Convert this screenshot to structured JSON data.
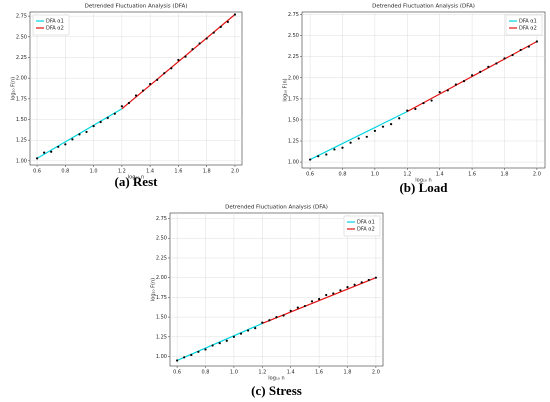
{
  "chart_data": [
    {
      "type": "scatter",
      "title": "Detrended Fluctuation Analysis (DFA)",
      "caption": "(a) Rest",
      "xlabel": "log₁₀ n",
      "ylabel": "log₁₀ F(n)",
      "grid": true,
      "legend": "upper left",
      "xlim": [
        0.55,
        2.05
      ],
      "ylim": [
        0.95,
        2.8
      ],
      "xticks": [
        0.6,
        0.8,
        {
          "value": 1.0,
          "label": "1.0"
        },
        1.2,
        1.4,
        1.6,
        1.8,
        {
          "value": 2.0,
          "label": "2.0"
        }
      ],
      "yticks": [
        {
          "value": 1.0,
          "label": "1.00"
        },
        1.25,
        {
          "value": 1.5,
          "label": "1.50"
        },
        1.75,
        {
          "value": 2.0,
          "label": "2.00"
        },
        2.25,
        {
          "value": 2.5,
          "label": "2.50"
        },
        2.75
      ],
      "points": {
        "color": "#000000",
        "x": [
          0.6,
          0.65,
          0.7,
          0.75,
          0.8,
          0.85,
          0.9,
          0.95,
          1.0,
          1.05,
          1.1,
          1.15,
          1.2,
          1.25,
          1.3,
          1.35,
          1.4,
          1.45,
          1.5,
          1.55,
          1.6,
          1.65,
          1.7,
          1.75,
          1.8,
          1.85,
          1.9,
          1.95,
          2.0
        ],
        "values": [
          1.03,
          1.1,
          1.11,
          1.17,
          1.2,
          1.26,
          1.32,
          1.35,
          1.42,
          1.47,
          1.52,
          1.57,
          1.66,
          1.7,
          1.79,
          1.85,
          1.93,
          1.98,
          2.06,
          2.12,
          2.22,
          2.26,
          2.35,
          2.42,
          2.48,
          2.55,
          2.62,
          2.68,
          2.77
        ]
      },
      "series": [
        {
          "name": "DFA α1",
          "color": "#00d5e0",
          "x": [
            0.6,
            1.2
          ],
          "values": [
            1.03,
            1.63
          ]
        },
        {
          "name": "DFA α2",
          "color": "#e01010",
          "x": [
            1.2,
            2.0
          ],
          "values": [
            1.63,
            2.77
          ]
        }
      ]
    },
    {
      "type": "scatter",
      "title": "Detrended Fluctuation Analysis (DFA)",
      "caption": "(b) Load",
      "xlabel": "log₁₀ n",
      "ylabel": "log₁₀ F(n)",
      "grid": true,
      "legend": "upper right",
      "xlim": [
        0.55,
        2.05
      ],
      "ylim": [
        0.93,
        2.78
      ],
      "xticks": [
        0.6,
        0.8,
        {
          "value": 1.0,
          "label": "1.0"
        },
        1.2,
        1.4,
        1.6,
        1.8,
        {
          "value": 2.0,
          "label": "2.0"
        }
      ],
      "yticks": [
        {
          "value": 1.0,
          "label": "1.00"
        },
        1.25,
        {
          "value": 1.5,
          "label": "1.50"
        },
        1.75,
        {
          "value": 2.0,
          "label": "2.00"
        },
        2.25,
        {
          "value": 2.5,
          "label": "2.50"
        },
        2.75
      ],
      "points": {
        "color": "#000000",
        "x": [
          0.6,
          0.65,
          0.7,
          0.75,
          0.8,
          0.85,
          0.9,
          0.95,
          1.0,
          1.05,
          1.1,
          1.15,
          1.2,
          1.25,
          1.3,
          1.35,
          1.4,
          1.45,
          1.5,
          1.55,
          1.6,
          1.65,
          1.7,
          1.75,
          1.8,
          1.85,
          1.9,
          1.95,
          2.0
        ],
        "values": [
          1.03,
          1.07,
          1.09,
          1.15,
          1.17,
          1.23,
          1.28,
          1.3,
          1.37,
          1.42,
          1.45,
          1.52,
          1.61,
          1.63,
          1.7,
          1.73,
          1.83,
          1.85,
          1.92,
          1.96,
          2.03,
          2.07,
          2.13,
          2.17,
          2.23,
          2.27,
          2.33,
          2.37,
          2.43
        ]
      },
      "series": [
        {
          "name": "DFA α1",
          "color": "#00d5e0",
          "x": [
            0.6,
            1.2
          ],
          "values": [
            1.03,
            1.6
          ]
        },
        {
          "name": "DFA α2",
          "color": "#e01010",
          "x": [
            1.2,
            2.0
          ],
          "values": [
            1.6,
            2.43
          ]
        }
      ]
    },
    {
      "type": "scatter",
      "title": "Detrended Fluctuation Analysis (DFA)",
      "caption": "(c) Stress",
      "xlabel": "log₁₀ n",
      "ylabel": "log₁₀ F(n)",
      "grid": true,
      "legend": "upper right",
      "xlim": [
        0.55,
        2.05
      ],
      "ylim": [
        0.88,
        2.82
      ],
      "xticks": [
        0.6,
        0.8,
        {
          "value": 1.0,
          "label": "1.0"
        },
        1.2,
        1.4,
        1.6,
        1.8,
        {
          "value": 2.0,
          "label": "2.0"
        }
      ],
      "yticks": [
        {
          "value": 1.0,
          "label": "1.00"
        },
        1.25,
        {
          "value": 1.5,
          "label": "1.50"
        },
        1.75,
        {
          "value": 2.0,
          "label": "2.00"
        },
        2.25,
        {
          "value": 2.5,
          "label": "2.50"
        },
        2.75
      ],
      "points": {
        "color": "#000000",
        "x": [
          0.6,
          0.65,
          0.7,
          0.75,
          0.8,
          0.85,
          0.9,
          0.95,
          1.0,
          1.05,
          1.1,
          1.15,
          1.2,
          1.25,
          1.3,
          1.35,
          1.4,
          1.45,
          1.5,
          1.55,
          1.6,
          1.65,
          1.7,
          1.75,
          1.8,
          1.85,
          1.9,
          1.95,
          2.0
        ],
        "values": [
          0.95,
          0.99,
          1.02,
          1.06,
          1.09,
          1.14,
          1.17,
          1.2,
          1.25,
          1.29,
          1.33,
          1.36,
          1.43,
          1.46,
          1.5,
          1.52,
          1.58,
          1.62,
          1.64,
          1.7,
          1.73,
          1.78,
          1.8,
          1.84,
          1.88,
          1.91,
          1.94,
          1.97,
          2.0
        ]
      },
      "series": [
        {
          "name": "DFA α1",
          "color": "#00d5e0",
          "x": [
            0.6,
            1.2
          ],
          "values": [
            0.95,
            1.42
          ]
        },
        {
          "name": "DFA α2",
          "color": "#e01010",
          "x": [
            1.2,
            2.0
          ],
          "values": [
            1.42,
            2.0
          ]
        }
      ]
    }
  ]
}
